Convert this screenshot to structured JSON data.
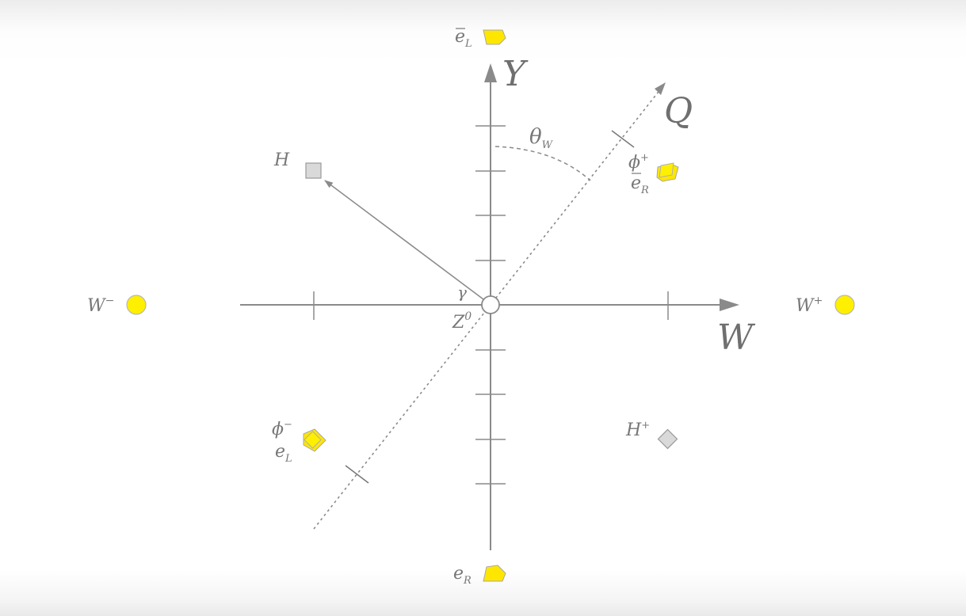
{
  "diagram": {
    "axes": {
      "y_label": "Y",
      "w_label": "W",
      "q_label": "Q"
    },
    "angle_label": {
      "base": "θ",
      "sub": "W"
    },
    "center": {
      "gamma": "γ",
      "z_base": "Z",
      "z_sup": "0"
    },
    "particles": {
      "W_minus": {
        "base": "W",
        "sup": "−",
        "color": "#ffef00"
      },
      "W_plus": {
        "base": "W",
        "sup": "+",
        "color": "#ffef00"
      },
      "H": {
        "base": "H",
        "color": "#d9d9d9"
      },
      "H_plus": {
        "base": "H",
        "sup": "+",
        "color": "#d9d9d9"
      },
      "phi_plus": {
        "base": "ϕ",
        "sup": "+"
      },
      "eR_bar": {
        "base": "e",
        "sub": "R",
        "bar": "‾"
      },
      "eL_bar": {
        "base": "e",
        "sub": "L",
        "bar": "‾"
      },
      "phi_minus": {
        "base": "ϕ",
        "sup": "−"
      },
      "eL": {
        "base": "e",
        "sub": "L"
      },
      "eR": {
        "base": "e",
        "sub": "R"
      }
    },
    "colors": {
      "axis": "#8a8a8a",
      "fermion_yellow": "#ffe600",
      "boson_yellow": "#ffef00",
      "scalar_gray": "#d9d9d9",
      "label_gray": "#777777"
    }
  }
}
